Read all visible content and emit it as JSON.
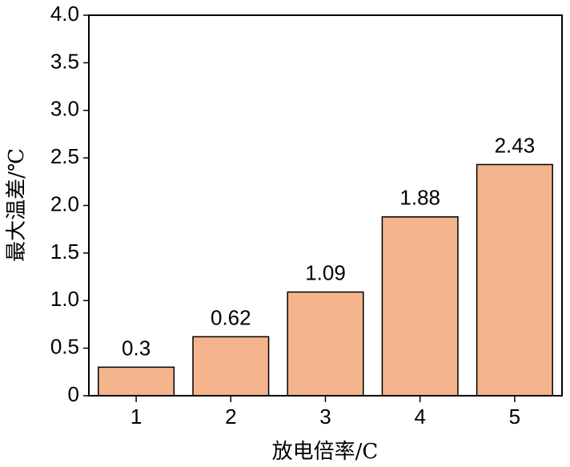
{
  "chart_data": {
    "type": "bar",
    "x_label": "放电倍率/C",
    "y_label": "最大温差/℃",
    "categories": [
      "1",
      "2",
      "3",
      "4",
      "5"
    ],
    "values": [
      0.3,
      0.62,
      1.09,
      1.88,
      2.43
    ],
    "color": "#f4b48c",
    "ylim": [
      0,
      4
    ],
    "yticks": [
      0,
      0.5,
      {
        "value": 1,
        "label": "1.0"
      },
      1.5,
      {
        "value": 2,
        "label": "2.0"
      },
      2.5,
      {
        "value": 3,
        "label": "3.0"
      },
      3.5,
      {
        "value": 4,
        "label": "4.0"
      }
    ],
    "grid": false
  }
}
